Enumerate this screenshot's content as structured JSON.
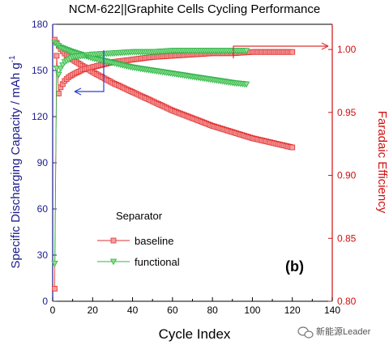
{
  "chart_data": {
    "type": "scatter",
    "title": "NCM-622||Graphite Cells Cycling Performance",
    "xlabel": "Cycle Index",
    "ylabel_left": "Specific Discharging Capacity / mAh g",
    "ylabel_left_sup": "-1",
    "ylabel_right": "Faradaic Efficiency",
    "xlim": [
      0,
      140
    ],
    "ylim_left": [
      0,
      180
    ],
    "ylim_right": [
      0.8,
      1.02
    ],
    "x_ticks": [
      "0",
      "20",
      "40",
      "60",
      "80",
      "100",
      "120",
      "140"
    ],
    "y_ticks_left": [
      "0",
      "30",
      "60",
      "90",
      "120",
      "150",
      "180"
    ],
    "y_ticks_right": [
      "0.80",
      "0.85",
      "0.90",
      "0.95",
      "1.00"
    ],
    "legend_title": "Separator",
    "panel_label": "(b)",
    "series": [
      {
        "name": "baseline",
        "color": "#e03030",
        "marker": "square",
        "axis_capacity": {
          "x": [
            1,
            2,
            3,
            4,
            6,
            8,
            10,
            15,
            20,
            30,
            40,
            50,
            60,
            70,
            80,
            90,
            100,
            110,
            120
          ],
          "y": [
            170,
            168,
            166,
            164,
            161,
            159,
            157,
            153,
            149,
            142,
            136,
            130,
            124,
            119,
            114,
            110,
            106,
            103,
            100
          ]
        },
        "axis_efficiency": {
          "x": [
            1,
            2,
            3,
            4,
            6,
            8,
            10,
            15,
            20,
            30,
            40,
            50,
            60,
            70,
            80,
            90,
            100,
            110,
            120
          ],
          "y": [
            0.81,
            0.995,
            0.965,
            0.97,
            0.975,
            0.978,
            0.98,
            0.984,
            0.986,
            0.99,
            0.992,
            0.994,
            0.995,
            0.996,
            0.997,
            0.997,
            0.998,
            0.998,
            0.998
          ]
        }
      },
      {
        "name": "functional",
        "color": "#2fb34a",
        "marker": "triangle-down",
        "axis_capacity": {
          "x": [
            1,
            2,
            3,
            4,
            6,
            8,
            10,
            15,
            20,
            30,
            40,
            50,
            60,
            70,
            80,
            90,
            97
          ],
          "y": [
            168,
            167,
            166,
            165,
            164,
            163,
            162,
            160,
            158,
            155,
            152,
            150,
            148,
            146,
            144,
            142,
            141
          ]
        },
        "axis_efficiency": {
          "x": [
            1,
            2,
            3,
            4,
            6,
            8,
            10,
            15,
            20,
            30,
            40,
            50,
            60,
            70,
            80,
            90,
            97
          ],
          "y": [
            0.83,
            0.985,
            0.98,
            0.985,
            0.99,
            0.992,
            0.994,
            0.995,
            0.996,
            0.997,
            0.998,
            0.998,
            0.999,
            0.999,
            0.999,
            0.999,
            0.999
          ]
        }
      }
    ]
  },
  "watermark": "新能源Leader",
  "arrow_colors": {
    "left": "#2a3fd6",
    "right": "#e03030"
  },
  "axis_colors": {
    "left": "#1a1a8c",
    "right": "#d01010"
  }
}
